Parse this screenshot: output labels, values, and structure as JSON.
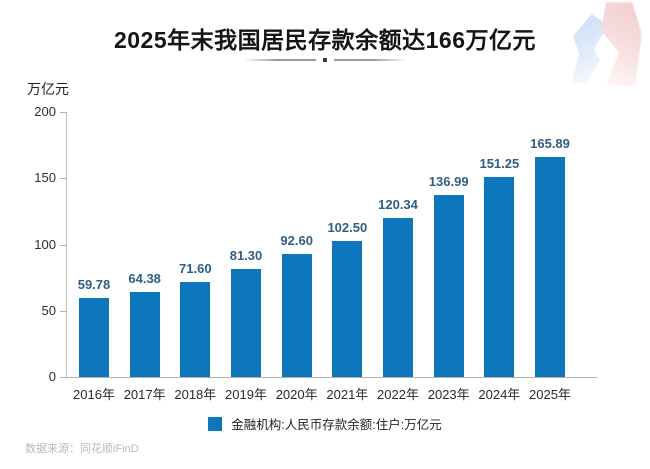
{
  "title": "2025年末我国居民存款余额达166万亿元",
  "source": "数据来源：同花顺iFinD",
  "chart_data": {
    "type": "bar",
    "title": "2025年末我国居民存款余额达166万亿元",
    "ylabel": "万亿元",
    "xlabel": "",
    "ylim": [
      0,
      200
    ],
    "yticks": [
      0,
      50,
      100,
      150,
      200
    ],
    "grid": false,
    "legend_position": "bottom",
    "categories": [
      "2016年",
      "2017年",
      "2018年",
      "2019年",
      "2020年",
      "2021年",
      "2022年",
      "2023年",
      "2024年",
      "2025年"
    ],
    "values": [
      59.78,
      64.38,
      71.6,
      81.3,
      92.6,
      102.5,
      120.34,
      136.99,
      151.25,
      165.89
    ],
    "value_labels": [
      "59.78",
      "64.38",
      "71.60",
      "81.30",
      "92.60",
      "102.50",
      "120.34",
      "136.99",
      "151.25",
      "165.89"
    ],
    "legend": "金融机构:人民币存款余额:住户:万亿元",
    "colors": {
      "bar": "#0e76bc",
      "value_label": "#2f5e85",
      "axis": "#b3b3b3"
    }
  }
}
